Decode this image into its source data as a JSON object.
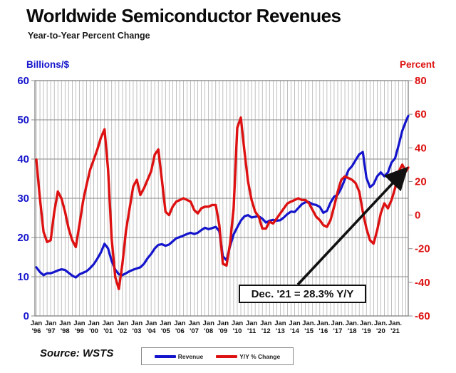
{
  "header": {
    "title": "Worldwide Semiconductor Revenues",
    "subtitle": "Year-to-Year Percent Change"
  },
  "chart_data": {
    "type": "line",
    "title": "Worldwide Semiconductor Revenues",
    "subtitle": "Year-to-Year Percent Change",
    "x_unit": "month",
    "x_range": [
      "Jan 1996",
      "Dec 2021"
    ],
    "sampling": "quarterly (Jan/Apr/Jul/Oct) of each year 1996-2021 plus a final Dec 2021 point",
    "grid": "dense vertical quarterly gridlines; horizontal gridlines every 10 (left scale)",
    "legend_position": "bottom-center",
    "left_axis": {
      "label": "Billions/$",
      "range": [
        0,
        60
      ],
      "ticks": [
        60,
        50,
        40,
        30,
        20,
        10,
        0
      ],
      "color": "#1414cc"
    },
    "right_axis": {
      "label": "Percent",
      "range": [
        -60,
        80
      ],
      "ticks": [
        80,
        60,
        40,
        20,
        0,
        -20,
        -40,
        -60
      ],
      "color": "#dd1111"
    },
    "x_ticks": [
      {
        "month": "Jan",
        "year": "'96"
      },
      {
        "month": "Jan",
        "year": "'97"
      },
      {
        "month": "Jan",
        "year": "'98"
      },
      {
        "month": "Jan",
        "year": "'99"
      },
      {
        "month": "Jan",
        "year": "'00"
      },
      {
        "month": "Jan",
        "year": "'01"
      },
      {
        "month": "Jan",
        "year": "'02"
      },
      {
        "month": "Jan",
        "year": "'03"
      },
      {
        "month": "Jan",
        "year": "'04"
      },
      {
        "month": "Jan",
        "year": "'05"
      },
      {
        "month": "Jan",
        "year": "'06"
      },
      {
        "month": "Jan",
        "year": "'07"
      },
      {
        "month": "Jan",
        "year": "'08"
      },
      {
        "month": "Jan",
        "year": "'09"
      },
      {
        "month": "Jan",
        "year": "'10"
      },
      {
        "month": "Jan",
        "year": "'11"
      },
      {
        "month": "Jan",
        "year": "'12"
      },
      {
        "month": "Jan",
        "year": "'13"
      },
      {
        "month": "Jan",
        "year": "'14"
      },
      {
        "month": "Jan.",
        "year": "'15"
      },
      {
        "month": "Jan.",
        "year": "'16"
      },
      {
        "month": "Jan.",
        "year": "'17"
      },
      {
        "month": "Jan.",
        "year": "'18"
      },
      {
        "month": "Jan.",
        "year": "'19"
      },
      {
        "month": "Jan.",
        "year": "'20"
      },
      {
        "month": "Jan.",
        "year": "'21"
      }
    ],
    "series": [
      {
        "name": "Revenue",
        "axis": "left",
        "color": "#1414cc",
        "values": [
          12.4,
          11.2,
          10.4,
          10.9,
          10.9,
          11.2,
          11.6,
          11.9,
          11.7,
          11.0,
          10.3,
          9.8,
          10.6,
          11.0,
          11.4,
          12.2,
          13.2,
          14.6,
          16.2,
          18.4,
          17.2,
          14.0,
          11.8,
          10.6,
          10.4,
          10.9,
          11.4,
          11.8,
          12.1,
          12.4,
          13.3,
          14.7,
          15.8,
          17.2,
          18.1,
          18.3,
          17.9,
          18.2,
          19.0,
          19.8,
          20.1,
          20.5,
          20.9,
          21.2,
          20.9,
          21.2,
          21.9,
          22.5,
          22.1,
          22.4,
          22.7,
          21.6,
          15.2,
          14.2,
          17.8,
          20.8,
          22.6,
          24.3,
          25.4,
          25.7,
          25.1,
          25.3,
          25.4,
          24.8,
          23.8,
          24.3,
          24.5,
          24.3,
          24.4,
          25.1,
          26.0,
          26.6,
          26.5,
          27.5,
          28.5,
          29.0,
          29.0,
          28.5,
          28.3,
          27.8,
          26.3,
          26.8,
          28.9,
          30.4,
          30.9,
          32.6,
          34.8,
          37.2,
          38.2,
          39.7,
          41.2,
          41.8,
          35.2,
          32.8,
          33.6,
          35.6,
          36.6,
          35.6,
          36.6,
          39.1,
          40.2,
          43.6,
          47.2,
          49.6,
          51.0
        ]
      },
      {
        "name": "Y/Y % Change",
        "axis": "right",
        "color": "#dd1111",
        "values": [
          33,
          10,
          -10,
          -16,
          -15,
          2,
          14,
          10,
          2,
          -8,
          -15,
          -19,
          -6,
          8,
          18,
          27,
          33,
          39,
          46,
          51,
          27,
          -14,
          -37,
          -44,
          -29,
          -9,
          4,
          17,
          21,
          12,
          16,
          21,
          26,
          36,
          39,
          21,
          2,
          0,
          5,
          8,
          9,
          10,
          9,
          8,
          3,
          1,
          4,
          5,
          5,
          6,
          6,
          -6,
          -29,
          -30,
          -17,
          4,
          52,
          58,
          38,
          20,
          9,
          2,
          -1,
          -8,
          -8,
          -4,
          -5,
          -2,
          1,
          4,
          7,
          8,
          9,
          10,
          9,
          9,
          7,
          3,
          -1,
          -3,
          -6,
          -7,
          -3,
          5,
          14,
          21,
          23,
          22,
          21,
          19,
          14,
          2,
          -8,
          -15,
          -17,
          -9,
          1,
          7,
          4,
          9,
          16,
          26,
          30,
          26,
          28.3
        ]
      }
    ]
  },
  "annotation": {
    "text": "Dec. '21 = 28.3% Y/Y",
    "points_to": "final Y/Y % Change data point (Dec 2021)"
  },
  "legend": {
    "items": [
      {
        "label": "Revenue",
        "color": "#1414cc"
      },
      {
        "label": "Y/Y % Change",
        "color": "#dd1111"
      }
    ]
  },
  "source": {
    "label": "Source: WSTS"
  },
  "colors": {
    "revenue_line": "#1414cc",
    "yoy_line": "#dd1111",
    "gridline": "#a6a6a6",
    "major_gridline": "#8a8a8a",
    "plot_border": "#787878",
    "annotation_arrow": "#111111",
    "background": "#ffffff"
  }
}
